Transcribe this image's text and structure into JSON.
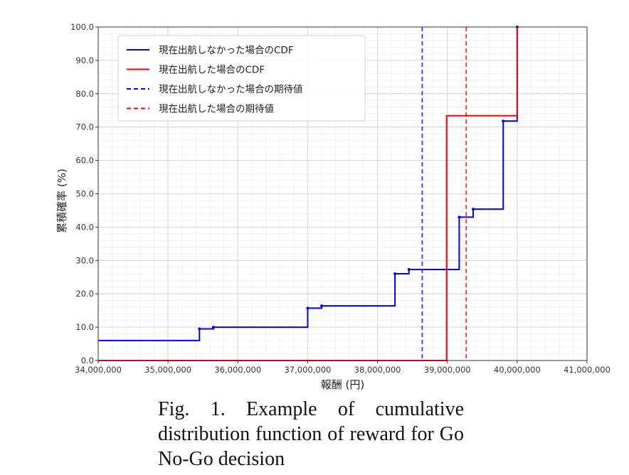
{
  "chart_data": {
    "type": "line",
    "title": "",
    "xlabel": "報酬 (円)",
    "ylabel": "累積確率 (%)",
    "xlim": [
      34000000,
      41000000
    ],
    "ylim": [
      0,
      100
    ],
    "xticks": [
      34000000,
      35000000,
      36000000,
      37000000,
      38000000,
      39000000,
      40000000,
      41000000
    ],
    "xtick_labels": [
      "34,000,000",
      "35,000,000",
      "36,000,000",
      "37,000,000",
      "38,000,000",
      "39,000,000",
      "40,000,000",
      "41,000,000"
    ],
    "yticks": [
      0,
      10,
      20,
      30,
      40,
      50,
      60,
      70,
      80,
      90,
      100
    ],
    "ytick_labels": [
      "0.0",
      "10.0",
      "20.0",
      "30.0",
      "40.0",
      "50.0",
      "60.0",
      "70.0",
      "80.0",
      "90.0",
      "100.0"
    ],
    "grid": true,
    "legend_position": "top-left",
    "series": [
      {
        "name": "現在出航しなかった場合のCDF",
        "color": "#0000ff",
        "style": "step-solid",
        "x": [
          34000000,
          35450000,
          35650000,
          37000000,
          37200000,
          38250000,
          38450000,
          39170000,
          39370000,
          39800000,
          40000000
        ],
        "y": [
          6.0,
          9.5,
          10.0,
          15.7,
          16.4,
          26.0,
          27.3,
          43.0,
          45.4,
          71.8,
          100.0
        ]
      },
      {
        "name": "現在出航した場合のCDF",
        "color": "#ff0000",
        "style": "step-solid",
        "x": [
          34000000,
          38990000,
          40000000
        ],
        "y": [
          0.0,
          73.4,
          100.0
        ]
      },
      {
        "name": "現在出航しなかった場合の期待値",
        "color": "#0000ff",
        "style": "vline-dashed",
        "x": 38640000
      },
      {
        "name": "現在出航した場合の期待値",
        "color": "#ff0000",
        "style": "vline-dashed",
        "x": 39270000
      }
    ]
  },
  "caption": "Fig. 1. Example of cumulative distribution function of reward for Go No-Go decision"
}
